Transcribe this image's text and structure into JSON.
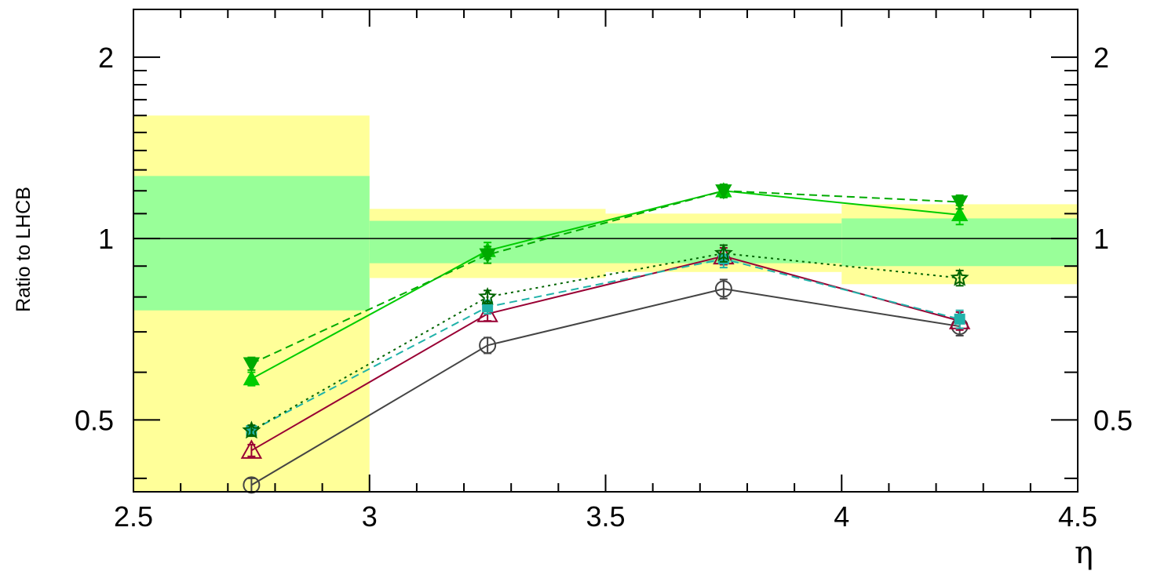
{
  "chart_data": {
    "type": "line",
    "xlabel": "η",
    "ylabel": "Ratio to LHCB",
    "xlim": [
      2.5,
      4.5
    ],
    "ylim": [
      0.38,
      2.4
    ],
    "y_scale": "log",
    "x_ticks": [
      "2.5",
      "3",
      "3.5",
      "4",
      "4.5"
    ],
    "y_ticks": [
      "0.5",
      "1",
      "2"
    ],
    "reference_line": 1,
    "bands": [
      {
        "x0": 2.5,
        "x1": 3.0,
        "inner": [
          0.76,
          1.27
        ],
        "outer": [
          0.38,
          1.6
        ]
      },
      {
        "x0": 3.0,
        "x1": 3.5,
        "inner": [
          0.91,
          1.07
        ],
        "outer": [
          0.86,
          1.12
        ]
      },
      {
        "x0": 3.5,
        "x1": 4.0,
        "inner": [
          0.91,
          1.06
        ],
        "outer": [
          0.88,
          1.1
        ]
      },
      {
        "x0": 4.0,
        "x1": 4.5,
        "inner": [
          0.9,
          1.08
        ],
        "outer": [
          0.84,
          1.14
        ]
      }
    ],
    "band_colors": {
      "inner": "#99ff99",
      "outer": "#ffff99"
    },
    "x": [
      2.75,
      3.25,
      3.75,
      4.25
    ],
    "series": [
      {
        "values": [
          0.39,
          0.665,
          0.825,
          0.715
        ],
        "errors": [
          0.01,
          0.02,
          0.03,
          0.025
        ],
        "color": "#444444",
        "dash": "solid",
        "marker": "circle-open"
      },
      {
        "values": [
          0.445,
          0.75,
          0.935,
          0.73
        ],
        "errors": [
          0.01,
          0.02,
          0.03,
          0.025
        ],
        "color": "#990033",
        "dash": "solid",
        "marker": "triangle-up-open"
      },
      {
        "values": [
          0.48,
          0.77,
          0.925,
          0.735
        ],
        "errors": [
          0.01,
          0.02,
          0.03,
          0.025
        ],
        "color": "#20b2aa",
        "dash": "dashed",
        "marker": "square"
      },
      {
        "values": [
          0.48,
          0.8,
          0.945,
          0.86
        ],
        "errors": [
          0.01,
          0.02,
          0.03,
          0.025
        ],
        "color": "#006400",
        "dash": "dotted",
        "marker": "star-open"
      },
      {
        "values": [
          0.585,
          0.955,
          1.2,
          1.095
        ],
        "errors": [
          0.015,
          0.03,
          0.03,
          0.04
        ],
        "color": "#00cc00",
        "dash": "solid",
        "marker": "triangle-up"
      },
      {
        "values": [
          0.62,
          0.94,
          1.2,
          1.15
        ],
        "errors": [
          0.015,
          0.03,
          0.03,
          0.03
        ],
        "color": "#00aa00",
        "dash": "dashed",
        "marker": "triangle-down"
      }
    ]
  }
}
